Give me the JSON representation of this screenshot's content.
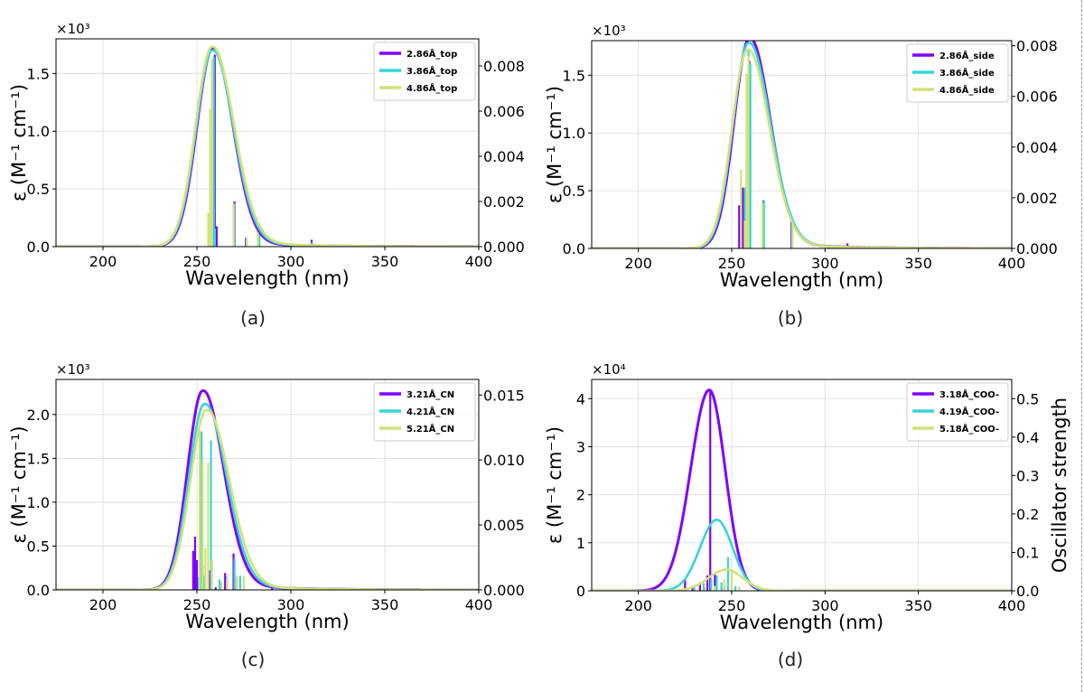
{
  "chart_data": [
    {
      "type": "line",
      "panel_label": "(a)",
      "xlabel": "Wavelength (nm)",
      "ylabel": "ε (M⁻¹ cm⁻¹)",
      "y_multiplier": "×10³",
      "y2label": "",
      "xlim": [
        175,
        400
      ],
      "ylim": [
        0,
        1.8
      ],
      "y2lim": [
        0,
        0.0092
      ],
      "xticks": [
        200,
        250,
        300,
        350,
        400
      ],
      "yticks": [
        0.0,
        0.5,
        1.0,
        1.5
      ],
      "y2ticks": [
        0.0,
        0.002,
        0.004,
        0.006,
        0.008
      ],
      "xtick_labels": [
        "200",
        "250",
        "300",
        "350",
        "400"
      ],
      "ytick_labels": [
        "0.0",
        "0.5",
        "1.0",
        "1.5"
      ],
      "y2tick_labels": [
        "0.000",
        "0.002",
        "0.004",
        "0.006",
        "0.008"
      ],
      "grid": true,
      "legend_position": "top-right",
      "series": [
        {
          "name": "2.86Å_top",
          "color": "#8000ff",
          "peak_x": 258.5,
          "peak_y": 1.72,
          "sigma_left": 8.5,
          "sigma_right": 10.5,
          "tail": 0.03,
          "sticks": [
            [
              259.5,
              0.0085
            ],
            [
              260.5,
              0.0009
            ],
            [
              270,
              0.002
            ],
            [
              276,
              0.0004
            ],
            [
              283,
              0.001
            ],
            [
              301,
              0.0001
            ],
            [
              311,
              0.0003
            ]
          ]
        },
        {
          "name": "3.86Å_top",
          "color": "#36d6d6",
          "peak_x": 258.2,
          "peak_y": 1.7,
          "sigma_left": 8.6,
          "sigma_right": 11,
          "tail": 0.035,
          "sticks": [
            [
              259.0,
              0.0084
            ],
            [
              259.6,
              0.0008
            ],
            [
              269.8,
              0.0019
            ],
            [
              276.3,
              0.0004
            ],
            [
              283.3,
              0.001
            ],
            [
              311.3,
              0.0002
            ]
          ]
        },
        {
          "name": "4.86Å_top",
          "color": "#d4e17a",
          "peak_x": 258.0,
          "peak_y": 1.73,
          "sigma_left": 8.7,
          "sigma_right": 11.5,
          "tail": 0.04,
          "sticks": [
            [
              256,
              0.0015
            ],
            [
              257,
              0.0061
            ],
            [
              258,
              0.0083
            ],
            [
              269.5,
              0.0019
            ],
            [
              276.6,
              0.0004
            ],
            [
              282.5,
              0.0009
            ]
          ]
        }
      ]
    },
    {
      "type": "line",
      "panel_label": "(b)",
      "xlabel": "Wavelength (nm)",
      "ylabel": "ε (M⁻¹ cm⁻¹)",
      "y_multiplier": "×10³",
      "y2label": "",
      "xlim": [
        175,
        400
      ],
      "ylim": [
        0,
        1.8
      ],
      "y2lim": [
        0,
        0.0082
      ],
      "xticks": [
        200,
        250,
        300,
        350,
        400
      ],
      "yticks": [
        0.0,
        0.5,
        1.0,
        1.5
      ],
      "y2ticks": [
        0.0,
        0.002,
        0.004,
        0.006,
        0.008
      ],
      "xtick_labels": [
        "200",
        "250",
        "300",
        "350",
        "400"
      ],
      "ytick_labels": [
        "0.0",
        "0.5",
        "1.0",
        "1.5"
      ],
      "y2tick_labels": [
        "0.000",
        "0.002",
        "0.004",
        "0.006",
        "0.008"
      ],
      "grid": true,
      "legend_position": "top-right",
      "series": [
        {
          "name": "2.86Å_side",
          "color": "#8000ff",
          "peak_x": 259.5,
          "peak_y": 1.82,
          "sigma_left": 8.2,
          "sigma_right": 11,
          "tail": 0.04,
          "sticks": [
            [
              254,
              0.0017
            ],
            [
              256,
              0.0024
            ],
            [
              258,
              0.0034
            ],
            [
              259.5,
              0.0074
            ],
            [
              267,
              0.0019
            ],
            [
              282,
              0.0013
            ],
            [
              312,
              0.0002
            ]
          ]
        },
        {
          "name": "3.86Å_side",
          "color": "#36d6d6",
          "peak_x": 259,
          "peak_y": 1.78,
          "sigma_left": 8.3,
          "sigma_right": 11.5,
          "tail": 0.04,
          "sticks": [
            [
              257,
              0.0024
            ],
            [
              259,
              0.0078
            ],
            [
              260,
              0.0073
            ],
            [
              267.3,
              0.0019
            ],
            [
              282.3,
              0.001
            ],
            [
              302,
              0.0001
            ]
          ]
        },
        {
          "name": "4.86Å_side",
          "color": "#d4e17a",
          "peak_x": 258.5,
          "peak_y": 1.72,
          "sigma_left": 8.4,
          "sigma_right": 11.5,
          "tail": 0.04,
          "sticks": [
            [
              255,
              0.0031
            ],
            [
              257,
              0.0011
            ],
            [
              258,
              0.0069
            ],
            [
              259,
              0.0076
            ],
            [
              266.5,
              0.0018
            ],
            [
              282.6,
              0.001
            ]
          ]
        }
      ]
    },
    {
      "type": "line",
      "panel_label": "(c)",
      "xlabel": "Wavelength (nm)",
      "ylabel": "ε (M⁻¹ cm⁻¹)",
      "y_multiplier": "×10³",
      "y2label": "",
      "xlim": [
        175,
        400
      ],
      "ylim": [
        0,
        2.4
      ],
      "y2lim": [
        0,
        0.0162
      ],
      "xticks": [
        200,
        250,
        300,
        350,
        400
      ],
      "yticks": [
        0.0,
        0.5,
        1.0,
        1.5,
        2.0
      ],
      "y2ticks": [
        0.0,
        0.005,
        0.01,
        0.015
      ],
      "xtick_labels": [
        "200",
        "250",
        "300",
        "350",
        "400"
      ],
      "ytick_labels": [
        "0.0",
        "0.5",
        "1.0",
        "1.5",
        "2.0"
      ],
      "y2tick_labels": [
        "0.000",
        "0.005",
        "0.010",
        "0.015"
      ],
      "grid": true,
      "legend_position": "top-right",
      "series": [
        {
          "name": "3.21Å_CN",
          "color": "#8000ff",
          "peak_x": 253,
          "peak_y": 2.27,
          "sigma_left": 8,
          "sigma_right": 11,
          "tail": 0.04,
          "sticks": [
            [
              248,
              0.003
            ],
            [
              249,
              0.0041
            ],
            [
              250,
              0.0023
            ],
            [
              253,
              0.0019
            ],
            [
              257,
              0.0015
            ],
            [
              260,
              0.0002
            ],
            [
              265,
              0.0013
            ],
            [
              269.5,
              0.0028
            ],
            [
              271,
              0.001
            ],
            [
              290,
              0.0004
            ],
            [
              311,
              0.0001
            ]
          ]
        },
        {
          "name": "4.21Å_CN",
          "color": "#36d6d6",
          "peak_x": 254,
          "peak_y": 2.12,
          "sigma_left": 8.3,
          "sigma_right": 11.5,
          "tail": 0.04,
          "sticks": [
            [
              251,
              0.001
            ],
            [
              252.5,
              0.0122
            ],
            [
              254,
              0.0011
            ],
            [
              257.5,
              0.0115
            ],
            [
              262,
              0.0008
            ],
            [
              266,
              0.001
            ],
            [
              270,
              0.0024
            ],
            [
              273,
              0.0011
            ]
          ]
        },
        {
          "name": "5.21Å_CN",
          "color": "#d4e17a",
          "peak_x": 255,
          "peak_y": 2.05,
          "sigma_left": 8.5,
          "sigma_right": 12,
          "tail": 0.04,
          "sticks": [
            [
              251.5,
              0.0122
            ],
            [
              253,
              0.0098
            ],
            [
              254.5,
              0.0032
            ],
            [
              256,
              0.0098
            ],
            [
              258,
              0.0023
            ],
            [
              263,
              0.0006
            ],
            [
              266,
              0.0009
            ],
            [
              271,
              0.0011
            ],
            [
              275,
              0.0011
            ]
          ]
        }
      ]
    },
    {
      "type": "line",
      "panel_label": "(d)",
      "xlabel": "Wavelength (nm)",
      "ylabel": "ε (M⁻¹ cm⁻¹)",
      "y_multiplier": "×10⁴",
      "y2label": "Oscillator strength",
      "xlim": [
        175,
        400
      ],
      "ylim": [
        0,
        4.4
      ],
      "y2lim": [
        0,
        0.55
      ],
      "xticks": [
        200,
        250,
        300,
        350,
        400
      ],
      "yticks": [
        0,
        1,
        2,
        3,
        4
      ],
      "y2ticks": [
        0.0,
        0.1,
        0.2,
        0.3,
        0.4,
        0.5
      ],
      "xtick_labels": [
        "200",
        "250",
        "300",
        "350",
        "400"
      ],
      "ytick_labels": [
        "0",
        "1",
        "2",
        "3",
        "4"
      ],
      "y2tick_labels": [
        "0.0",
        "0.1",
        "0.2",
        "0.3",
        "0.4",
        "0.5"
      ],
      "grid": true,
      "legend_position": "top-right",
      "series": [
        {
          "name": "3.18Å_COO-",
          "color": "#8000ff",
          "peak_x": 238,
          "peak_y": 4.18,
          "sigma_left": 10,
          "sigma_right": 8.5,
          "tail": 0,
          "sticks": [
            [
              212,
              0.003
            ],
            [
              225,
              0.028
            ],
            [
              229,
              0.012
            ],
            [
              233,
              0.022
            ],
            [
              237,
              0.04
            ],
            [
              238.5,
              0.522
            ],
            [
              241,
              0.043
            ],
            [
              246,
              0.01
            ]
          ]
        },
        {
          "name": "4.19Å_COO-",
          "color": "#36d6d6",
          "peak_x": 242,
          "peak_y": 1.48,
          "sigma_left": 9,
          "sigma_right": 8.5,
          "tail": 0,
          "sticks": [
            [
              230,
              0.015
            ],
            [
              235,
              0.02
            ],
            [
              239,
              0.03
            ],
            [
              242,
              0.04
            ],
            [
              244.5,
              0.022
            ],
            [
              248,
              0.088
            ],
            [
              252,
              0.012
            ]
          ]
        },
        {
          "name": "5.18Å_COO-",
          "color": "#d4e17a",
          "peak_x": 247,
          "peak_y": 0.44,
          "sigma_left": 9.5,
          "sigma_right": 9,
          "tail": 0,
          "sticks": [
            [
              236,
              0.01
            ],
            [
              241,
              0.013
            ],
            [
              246,
              0.03
            ],
            [
              250,
              0.052
            ],
            [
              254,
              0.01
            ]
          ]
        }
      ]
    }
  ]
}
